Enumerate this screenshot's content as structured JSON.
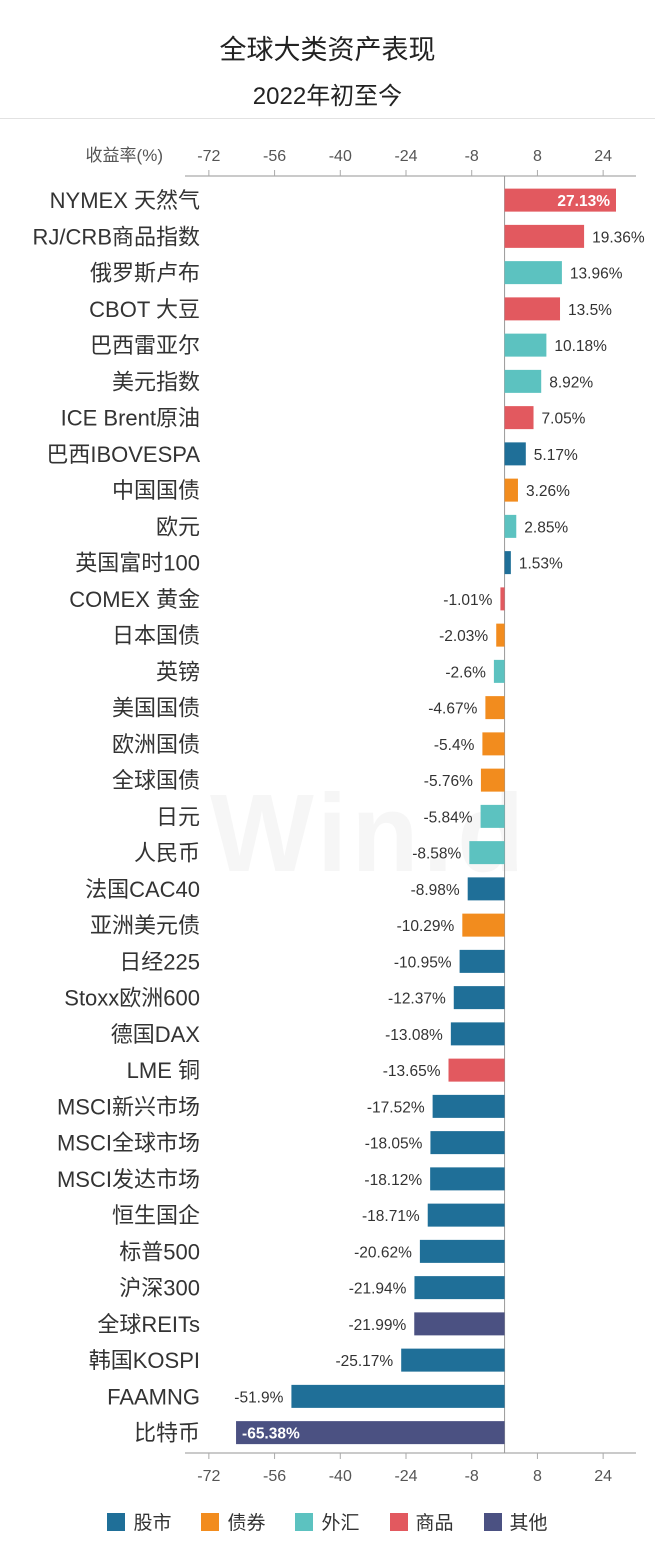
{
  "header": {
    "title": "全球大类资产表现",
    "subtitle": "2022年初至今"
  },
  "watermark": "Win.d",
  "colors": {
    "股市": "#1f6f98",
    "债券": "#f28c1e",
    "外汇": "#5cc2c0",
    "商品": "#e2595f",
    "其他": "#4b5182"
  },
  "chart_data": {
    "type": "bar",
    "orientation": "horizontal",
    "title": "全球大类资产表现",
    "subtitle": "2022年初至今",
    "ylabel": "收益率(%)",
    "xlim": [
      -80,
      32
    ],
    "ticks": [
      -72,
      -56,
      -40,
      -24,
      -8,
      8,
      24
    ],
    "legend_position": "bottom",
    "legend": [
      "股市",
      "债券",
      "外汇",
      "商品",
      "其他"
    ],
    "items": [
      {
        "label": "NYMEX 天然气",
        "value": 27.13,
        "group": "商品",
        "value_label": "27.13%"
      },
      {
        "label": "RJ/CRB商品指数",
        "value": 19.36,
        "group": "商品",
        "value_label": "19.36%"
      },
      {
        "label": "俄罗斯卢布",
        "value": 13.96,
        "group": "外汇",
        "value_label": "13.96%"
      },
      {
        "label": "CBOT 大豆",
        "value": 13.5,
        "group": "商品",
        "value_label": "13.5%"
      },
      {
        "label": "巴西雷亚尔",
        "value": 10.18,
        "group": "外汇",
        "value_label": "10.18%"
      },
      {
        "label": "美元指数",
        "value": 8.92,
        "group": "外汇",
        "value_label": "8.92%"
      },
      {
        "label": "ICE Brent原油",
        "value": 7.05,
        "group": "商品",
        "value_label": "7.05%"
      },
      {
        "label": "巴西IBOVESPA",
        "value": 5.17,
        "group": "股市",
        "value_label": "5.17%"
      },
      {
        "label": "中国国债",
        "value": 3.26,
        "group": "债券",
        "value_label": "3.26%"
      },
      {
        "label": "欧元",
        "value": 2.85,
        "group": "外汇",
        "value_label": "2.85%"
      },
      {
        "label": "英国富时100",
        "value": 1.53,
        "group": "股市",
        "value_label": "1.53%"
      },
      {
        "label": "COMEX 黄金",
        "value": -1.01,
        "group": "商品",
        "value_label": "-1.01%"
      },
      {
        "label": "日本国债",
        "value": -2.03,
        "group": "债券",
        "value_label": "-2.03%"
      },
      {
        "label": "英镑",
        "value": -2.6,
        "group": "外汇",
        "value_label": "-2.6%"
      },
      {
        "label": "美国国债",
        "value": -4.67,
        "group": "债券",
        "value_label": "-4.67%"
      },
      {
        "label": "欧洲国债",
        "value": -5.4,
        "group": "债券",
        "value_label": "-5.4%"
      },
      {
        "label": "全球国债",
        "value": -5.76,
        "group": "债券",
        "value_label": "-5.76%"
      },
      {
        "label": "日元",
        "value": -5.84,
        "group": "外汇",
        "value_label": "-5.84%"
      },
      {
        "label": "人民币",
        "value": -8.58,
        "group": "外汇",
        "value_label": "-8.58%"
      },
      {
        "label": "法国CAC40",
        "value": -8.98,
        "group": "股市",
        "value_label": "-8.98%"
      },
      {
        "label": "亚洲美元债",
        "value": -10.29,
        "group": "债券",
        "value_label": "-10.29%"
      },
      {
        "label": "日经225",
        "value": -10.95,
        "group": "股市",
        "value_label": "-10.95%"
      },
      {
        "label": "Stoxx欧洲600",
        "value": -12.37,
        "group": "股市",
        "value_label": "-12.37%"
      },
      {
        "label": "德国DAX",
        "value": -13.08,
        "group": "股市",
        "value_label": "-13.08%"
      },
      {
        "label": "LME 铜",
        "value": -13.65,
        "group": "商品",
        "value_label": "-13.65%"
      },
      {
        "label": "MSCI新兴市场",
        "value": -17.52,
        "group": "股市",
        "value_label": "-17.52%"
      },
      {
        "label": "MSCI全球市场",
        "value": -18.05,
        "group": "股市",
        "value_label": "-18.05%"
      },
      {
        "label": "MSCI发达市场",
        "value": -18.12,
        "group": "股市",
        "value_label": "-18.12%"
      },
      {
        "label": "恒生国企",
        "value": -18.71,
        "group": "股市",
        "value_label": "-18.71%"
      },
      {
        "label": "标普500",
        "value": -20.62,
        "group": "股市",
        "value_label": "-20.62%"
      },
      {
        "label": "沪深300",
        "value": -21.94,
        "group": "股市",
        "value_label": "-21.94%"
      },
      {
        "label": "全球REITs",
        "value": -21.99,
        "group": "其他",
        "value_label": "-21.99%"
      },
      {
        "label": "韩国KOSPI",
        "value": -25.17,
        "group": "股市",
        "value_label": "-25.17%"
      },
      {
        "label": "FAAMNG",
        "value": -51.9,
        "group": "股市",
        "value_label": "-51.9%"
      },
      {
        "label": "比特币",
        "value": -65.38,
        "group": "其他",
        "value_label": "-65.38%"
      }
    ]
  }
}
